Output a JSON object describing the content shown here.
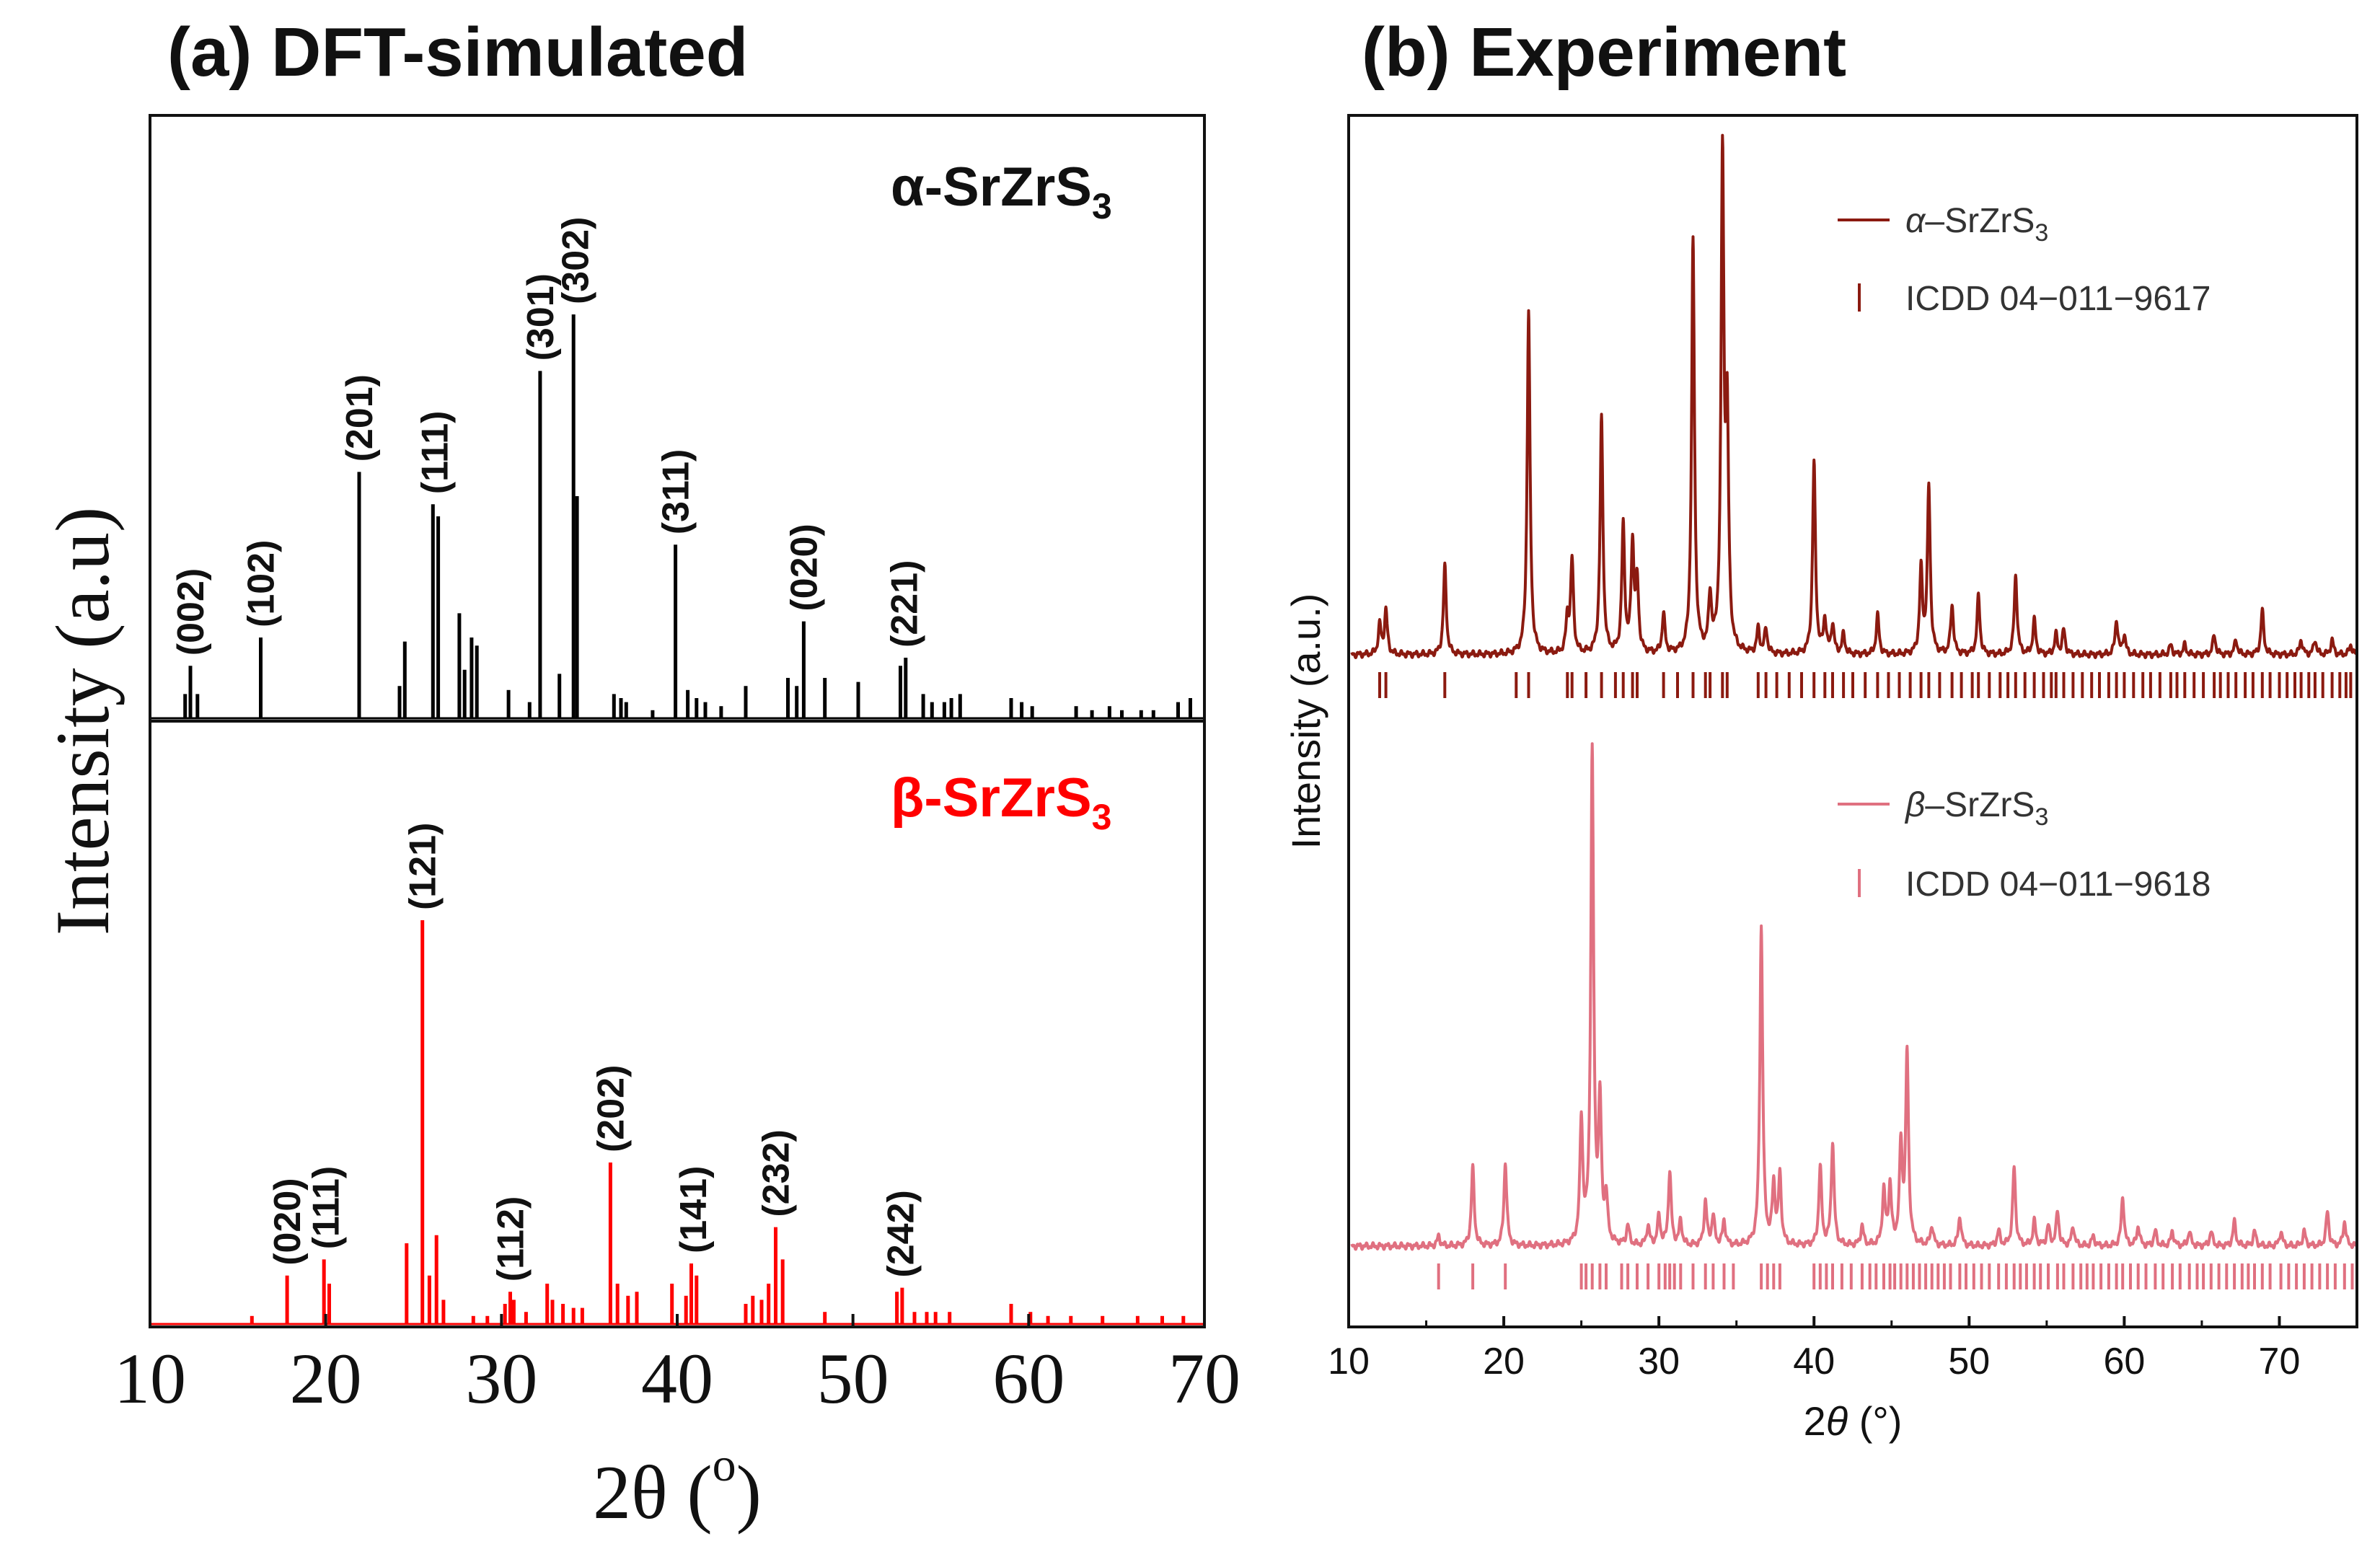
{
  "chart_data": [
    {
      "panel": "a",
      "type": "bar",
      "title": "(a) DFT-simulated",
      "xlabel": "2θ (°)",
      "xlabel_parts": {
        "main": "2θ (",
        "sup": "o",
        "close": ")"
      },
      "ylabel": "Intensity (a.u)",
      "xlim": [
        10,
        70
      ],
      "xticks": [
        10,
        20,
        30,
        40,
        50,
        60,
        70
      ],
      "xtick_labels": [
        "10",
        "20",
        "30",
        "40",
        "50",
        "60",
        "70"
      ],
      "series": [
        {
          "name": "α-SrZrS3",
          "label_main": "α-SrZrS",
          "label_sub": "3",
          "color": "#000000",
          "peaks": [
            [
              12.0,
              0.06
            ],
            [
              12.3,
              0.13
            ],
            [
              12.7,
              0.06
            ],
            [
              16.3,
              0.2
            ],
            [
              21.9,
              0.61
            ],
            [
              24.2,
              0.08
            ],
            [
              24.5,
              0.19
            ],
            [
              26.1,
              0.53
            ],
            [
              26.4,
              0.5
            ],
            [
              27.6,
              0.26
            ],
            [
              27.9,
              0.12
            ],
            [
              28.3,
              0.2
            ],
            [
              28.6,
              0.18
            ],
            [
              30.4,
              0.07
            ],
            [
              31.6,
              0.04
            ],
            [
              32.2,
              0.86
            ],
            [
              33.3,
              0.11
            ],
            [
              34.1,
              1.0
            ],
            [
              34.3,
              0.55
            ],
            [
              36.4,
              0.06
            ],
            [
              36.8,
              0.05
            ],
            [
              37.1,
              0.04
            ],
            [
              38.6,
              0.02
            ],
            [
              39.9,
              0.43
            ],
            [
              40.6,
              0.07
            ],
            [
              41.1,
              0.05
            ],
            [
              41.6,
              0.04
            ],
            [
              42.5,
              0.03
            ],
            [
              43.9,
              0.08
            ],
            [
              46.3,
              0.1
            ],
            [
              46.8,
              0.08
            ],
            [
              47.2,
              0.24
            ],
            [
              48.4,
              0.1
            ],
            [
              50.3,
              0.09
            ],
            [
              52.7,
              0.13
            ],
            [
              53.0,
              0.15
            ],
            [
              54.0,
              0.06
            ],
            [
              54.5,
              0.04
            ],
            [
              55.2,
              0.04
            ],
            [
              55.6,
              0.05
            ],
            [
              56.1,
              0.06
            ],
            [
              59.0,
              0.05
            ],
            [
              59.6,
              0.04
            ],
            [
              60.2,
              0.03
            ],
            [
              62.7,
              0.03
            ],
            [
              63.6,
              0.02
            ],
            [
              64.6,
              0.03
            ],
            [
              65.3,
              0.02
            ],
            [
              66.4,
              0.02
            ],
            [
              67.1,
              0.02
            ],
            [
              68.5,
              0.04
            ],
            [
              69.2,
              0.05
            ]
          ],
          "labels": [
            {
              "hkl": "(002)",
              "x": 12.3
            },
            {
              "hkl": "(102)",
              "x": 16.3
            },
            {
              "hkl": "(201)",
              "x": 21.9
            },
            {
              "hkl": "(111)",
              "x": 26.2
            },
            {
              "hkl": "(301)",
              "x": 32.2
            },
            {
              "hkl": "(302)",
              "x": 34.2
            },
            {
              "hkl": "(311)",
              "x": 39.9
            },
            {
              "hkl": "(020)",
              "x": 47.2
            },
            {
              "hkl": "(221)",
              "x": 52.9
            }
          ]
        },
        {
          "name": "β-SrZrS3",
          "label_main": "β-SrZrS",
          "label_sub": "3",
          "color": "#ff0000",
          "peaks": [
            [
              15.8,
              0.02
            ],
            [
              17.8,
              0.12
            ],
            [
              19.9,
              0.16
            ],
            [
              20.2,
              0.1
            ],
            [
              24.6,
              0.2
            ],
            [
              25.5,
              1.0
            ],
            [
              25.9,
              0.12
            ],
            [
              26.3,
              0.22
            ],
            [
              26.7,
              0.06
            ],
            [
              28.4,
              0.02
            ],
            [
              29.2,
              0.02
            ],
            [
              30.2,
              0.05
            ],
            [
              30.5,
              0.08
            ],
            [
              30.7,
              0.06
            ],
            [
              31.4,
              0.03
            ],
            [
              32.6,
              0.1
            ],
            [
              32.9,
              0.06
            ],
            [
              33.5,
              0.05
            ],
            [
              34.1,
              0.04
            ],
            [
              34.6,
              0.04
            ],
            [
              36.2,
              0.4
            ],
            [
              36.6,
              0.1
            ],
            [
              37.2,
              0.07
            ],
            [
              37.7,
              0.08
            ],
            [
              39.7,
              0.1
            ],
            [
              40.5,
              0.07
            ],
            [
              40.8,
              0.15
            ],
            [
              41.1,
              0.12
            ],
            [
              43.9,
              0.05
            ],
            [
              44.3,
              0.07
            ],
            [
              44.8,
              0.06
            ],
            [
              45.2,
              0.1
            ],
            [
              45.6,
              0.24
            ],
            [
              46.0,
              0.16
            ],
            [
              48.4,
              0.03
            ],
            [
              52.5,
              0.08
            ],
            [
              52.8,
              0.09
            ],
            [
              53.5,
              0.03
            ],
            [
              54.2,
              0.03
            ],
            [
              54.7,
              0.03
            ],
            [
              55.5,
              0.03
            ],
            [
              59.0,
              0.05
            ],
            [
              60.1,
              0.03
            ],
            [
              61.1,
              0.02
            ],
            [
              62.4,
              0.02
            ],
            [
              64.2,
              0.02
            ],
            [
              66.2,
              0.02
            ],
            [
              67.6,
              0.02
            ],
            [
              68.8,
              0.02
            ]
          ],
          "labels": [
            {
              "hkl": "(020)",
              "x": 17.8
            },
            {
              "hkl": "(111)",
              "x": 20.0
            },
            {
              "hkl": "(121)",
              "x": 25.5
            },
            {
              "hkl": "(112)",
              "x": 30.5
            },
            {
              "hkl": "(202)",
              "x": 36.2
            },
            {
              "hkl": "(141)",
              "x": 40.9
            },
            {
              "hkl": "(232)",
              "x": 45.6
            },
            {
              "hkl": "(242)",
              "x": 52.7
            }
          ]
        }
      ]
    },
    {
      "panel": "b",
      "type": "line",
      "title": "(b) Experiment",
      "xlabel": "2θ (°)",
      "xlabel_parts": {
        "main": "2",
        "theta": "θ",
        "close": " (°)"
      },
      "ylabel": "Intensity (a.u.)",
      "xlim": [
        10,
        75
      ],
      "xticks": [
        10,
        20,
        30,
        40,
        50,
        60,
        70
      ],
      "xtick_labels": [
        "10",
        "20",
        "30",
        "40",
        "50",
        "60",
        "70"
      ],
      "legend_position": "top-right",
      "series": [
        {
          "name": "α–SrZrS3",
          "label_alpha": "α",
          "label_rest": "–SrZrS",
          "label_sub": "3",
          "color": "#8b1a10",
          "peaks": [
            [
              12.0,
              0.06
            ],
            [
              12.4,
              0.09
            ],
            [
              16.2,
              0.18
            ],
            [
              21.6,
              0.7
            ],
            [
              24.1,
              0.07
            ],
            [
              24.4,
              0.19
            ],
            [
              26.3,
              0.48
            ],
            [
              27.7,
              0.26
            ],
            [
              28.3,
              0.22
            ],
            [
              28.6,
              0.14
            ],
            [
              30.3,
              0.08
            ],
            [
              32.2,
              0.84
            ],
            [
              33.3,
              0.11
            ],
            [
              34.1,
              1.0
            ],
            [
              34.4,
              0.45
            ],
            [
              36.4,
              0.05
            ],
            [
              36.9,
              0.05
            ],
            [
              40.0,
              0.39
            ],
            [
              40.7,
              0.07
            ],
            [
              41.2,
              0.06
            ],
            [
              41.9,
              0.04
            ],
            [
              44.1,
              0.08
            ],
            [
              46.9,
              0.17
            ],
            [
              47.4,
              0.34
            ],
            [
              48.9,
              0.1
            ],
            [
              50.6,
              0.12
            ],
            [
              53.0,
              0.16
            ],
            [
              54.2,
              0.07
            ],
            [
              55.6,
              0.04
            ],
            [
              56.1,
              0.05
            ],
            [
              59.5,
              0.07
            ],
            [
              60.0,
              0.04
            ],
            [
              63.0,
              0.02
            ],
            [
              63.9,
              0.02
            ],
            [
              65.8,
              0.04
            ],
            [
              67.2,
              0.03
            ],
            [
              68.9,
              0.09
            ],
            [
              71.4,
              0.03
            ],
            [
              72.3,
              0.03
            ],
            [
              73.4,
              0.03
            ],
            [
              74.6,
              0.02
            ]
          ],
          "ticks": [
            12.0,
            12.4,
            16.2,
            20.8,
            21.6,
            24.1,
            24.4,
            25.3,
            26.3,
            27.2,
            27.7,
            28.3,
            28.6,
            30.3,
            31.2,
            32.2,
            33.0,
            33.3,
            34.1,
            34.4,
            36.4,
            36.9,
            37.6,
            38.4,
            39.2,
            40.0,
            40.7,
            41.2,
            41.9,
            42.5,
            43.3,
            44.1,
            44.8,
            45.5,
            46.2,
            46.9,
            47.4,
            48.1,
            48.9,
            49.5,
            50.2,
            50.6,
            51.3,
            52.0,
            52.5,
            53.0,
            53.6,
            54.2,
            54.8,
            55.3,
            55.6,
            56.1,
            56.7,
            57.3,
            57.9,
            58.4,
            59.0,
            59.5,
            60.0,
            60.6,
            61.2,
            61.7,
            62.3,
            63.0,
            63.4,
            63.9,
            64.5,
            65.1,
            65.8,
            66.2,
            66.7,
            67.2,
            67.8,
            68.3,
            68.9,
            69.4,
            70.0,
            70.5,
            71.0,
            71.4,
            71.9,
            72.3,
            72.8,
            73.4,
            73.9,
            74.3,
            74.6
          ]
        },
        {
          "name": "ICDD 04−011−9617",
          "color": "#8b1a10",
          "role": "reference-ticks"
        },
        {
          "name": "β–SrZrS3",
          "label_alpha": "β",
          "label_rest": "–SrZrS",
          "label_sub": "3",
          "color": "#e07080",
          "peaks": [
            [
              15.8,
              0.02
            ],
            [
              18.0,
              0.16
            ],
            [
              20.1,
              0.17
            ],
            [
              25.0,
              0.25
            ],
            [
              25.7,
              1.0
            ],
            [
              26.2,
              0.28
            ],
            [
              26.6,
              0.09
            ],
            [
              28.0,
              0.04
            ],
            [
              29.3,
              0.04
            ],
            [
              30.0,
              0.06
            ],
            [
              30.7,
              0.15
            ],
            [
              31.4,
              0.05
            ],
            [
              33.0,
              0.09
            ],
            [
              33.5,
              0.06
            ],
            [
              34.2,
              0.05
            ],
            [
              36.6,
              0.65
            ],
            [
              37.4,
              0.12
            ],
            [
              37.8,
              0.14
            ],
            [
              40.4,
              0.16
            ],
            [
              41.2,
              0.21
            ],
            [
              43.1,
              0.04
            ],
            [
              44.5,
              0.11
            ],
            [
              44.9,
              0.12
            ],
            [
              45.6,
              0.2
            ],
            [
              46.0,
              0.39
            ],
            [
              47.6,
              0.04
            ],
            [
              49.4,
              0.06
            ],
            [
              51.9,
              0.03
            ],
            [
              52.9,
              0.16
            ],
            [
              54.2,
              0.05
            ],
            [
              55.1,
              0.04
            ],
            [
              55.7,
              0.07
            ],
            [
              56.7,
              0.04
            ],
            [
              58.0,
              0.02
            ],
            [
              59.9,
              0.1
            ],
            [
              60.9,
              0.04
            ],
            [
              62.0,
              0.03
            ],
            [
              63.1,
              0.03
            ],
            [
              64.2,
              0.03
            ],
            [
              65.6,
              0.03
            ],
            [
              67.1,
              0.05
            ],
            [
              68.4,
              0.03
            ],
            [
              70.1,
              0.03
            ],
            [
              71.6,
              0.03
            ],
            [
              73.1,
              0.07
            ],
            [
              74.2,
              0.05
            ]
          ],
          "ticks": [
            15.8,
            18.0,
            20.1,
            25.0,
            25.3,
            25.7,
            26.2,
            26.6,
            27.6,
            28.0,
            28.6,
            29.3,
            30.0,
            30.4,
            30.7,
            31.0,
            31.4,
            32.2,
            33.0,
            33.5,
            34.2,
            34.8,
            36.6,
            37.0,
            37.4,
            37.8,
            40.0,
            40.4,
            40.8,
            41.2,
            41.8,
            42.4,
            43.1,
            43.6,
            44.0,
            44.5,
            44.9,
            45.2,
            45.6,
            46.0,
            46.4,
            46.8,
            47.2,
            47.6,
            48.0,
            48.4,
            48.8,
            49.4,
            49.8,
            50.3,
            50.8,
            51.3,
            51.9,
            52.4,
            52.9,
            53.3,
            53.7,
            54.2,
            54.6,
            55.1,
            55.7,
            56.1,
            56.7,
            57.2,
            57.6,
            58.0,
            58.5,
            59.0,
            59.5,
            59.9,
            60.4,
            60.9,
            61.4,
            62.0,
            62.5,
            63.1,
            63.6,
            64.2,
            64.7,
            65.1,
            65.6,
            66.1,
            66.6,
            67.1,
            67.6,
            68.0,
            68.4,
            68.9,
            69.4,
            70.1,
            70.6,
            71.1,
            71.6,
            72.1,
            72.6,
            73.1,
            73.6,
            74.2,
            74.7
          ]
        },
        {
          "name": "ICDD 04−011−9618",
          "color": "#e07080",
          "role": "reference-ticks"
        }
      ]
    }
  ]
}
